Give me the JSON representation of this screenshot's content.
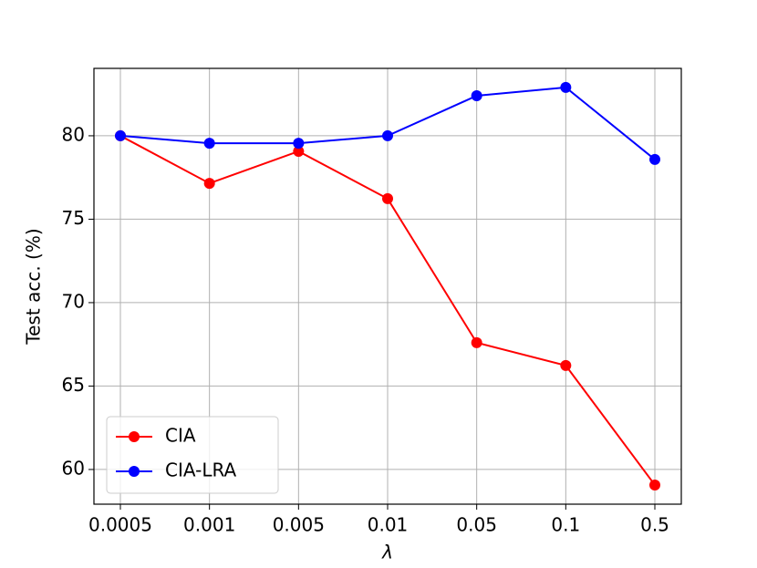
{
  "chart_data": {
    "type": "line",
    "x_label": "λ",
    "y_label": "Test acc. (%)",
    "categories": [
      "0.0005",
      "0.001",
      "0.005",
      "0.01",
      "0.05",
      "0.1",
      "0.5"
    ],
    "series": [
      {
        "name": "CIA",
        "color": "#ff0000",
        "values": [
          80.0,
          77.15,
          79.07,
          76.23,
          67.6,
          66.23,
          59.07
        ]
      },
      {
        "name": "CIA-LRA",
        "color": "#0000ff",
        "values": [
          80.0,
          79.55,
          79.55,
          80.0,
          82.4,
          82.9,
          78.58
        ]
      }
    ],
    "ylim": [
      57.92,
      84.04
    ],
    "yticks": [
      60,
      65,
      70,
      75,
      80
    ],
    "grid": true,
    "legend": "lower left"
  }
}
